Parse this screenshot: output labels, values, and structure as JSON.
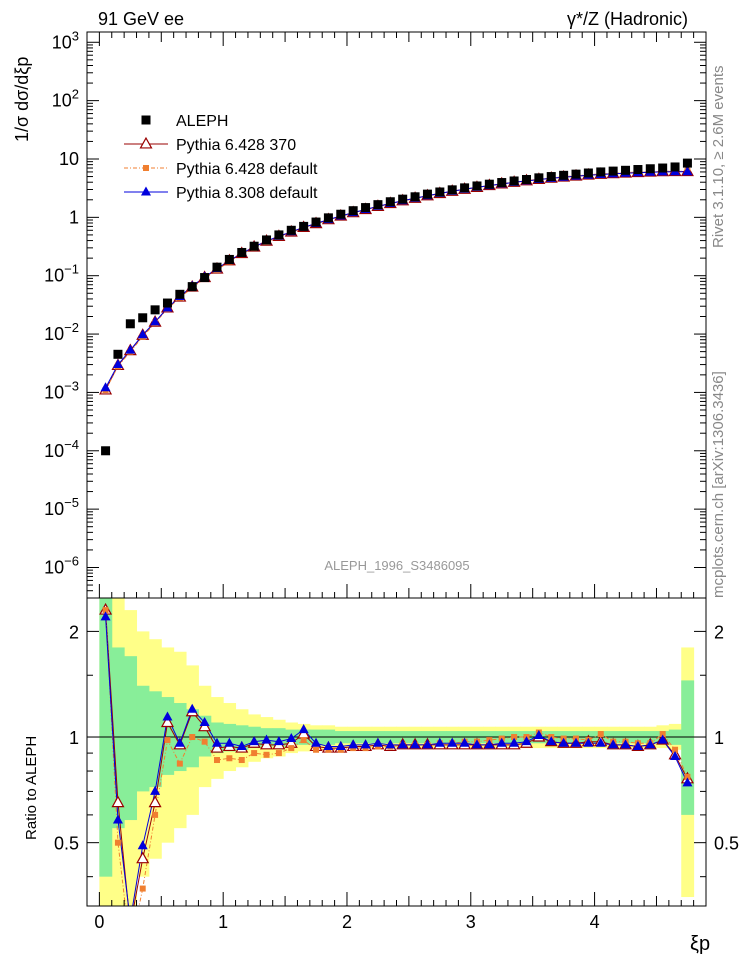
{
  "header": {
    "energy": "91 GeV ee",
    "process": "γ*/Z (Hadronic)"
  },
  "side_text": {
    "rivet": "Rivet 3.1.10, ≥ 2.6M events",
    "site": "mcplots.cern.ch [arXiv:1306.3436]"
  },
  "analysis_id": "ALEPH_1996_S3486095",
  "colors": {
    "aleph": "#000000",
    "py6_370": "#990000",
    "py6_default": "#f07f30",
    "py8_default": "#0000dd",
    "band_inner": "#88ee99",
    "band_outer": "#ffff88"
  },
  "chart_data": [
    {
      "type": "scatter",
      "name": "main",
      "ylabel": "1/σ dσ/dξp",
      "yscale": "log",
      "xlim": [
        -0.1,
        4.9
      ],
      "ylim": [
        3e-07,
        1500
      ],
      "yticks": [
        {
          "v": 1e-06,
          "base": "10",
          "exp": "−6"
        },
        {
          "v": 1e-05,
          "base": "10",
          "exp": "−5"
        },
        {
          "v": 0.0001,
          "base": "10",
          "exp": "−4"
        },
        {
          "v": 0.001,
          "base": "10",
          "exp": "−3"
        },
        {
          "v": 0.01,
          "base": "10",
          "exp": "−2"
        },
        {
          "v": 0.1,
          "base": "10",
          "exp": "−1"
        },
        {
          "v": 1,
          "base": "1",
          "exp": ""
        },
        {
          "v": 10,
          "base": "10",
          "exp": ""
        },
        {
          "v": 100,
          "base": "10",
          "exp": "2"
        },
        {
          "v": 1000,
          "base": "10",
          "exp": "3"
        }
      ],
      "legend": [
        "ALEPH",
        "Pythia 6.428 370",
        "Pythia 6.428 default",
        "Pythia 8.308 default"
      ],
      "x": [
        0.05,
        0.15,
        0.25,
        0.35,
        0.45,
        0.55,
        0.65,
        0.75,
        0.85,
        0.95,
        1.05,
        1.15,
        1.25,
        1.35,
        1.45,
        1.55,
        1.65,
        1.75,
        1.85,
        1.95,
        2.05,
        2.15,
        2.25,
        2.35,
        2.45,
        2.55,
        2.65,
        2.75,
        2.85,
        2.95,
        3.05,
        3.15,
        3.25,
        3.35,
        3.45,
        3.55,
        3.65,
        3.75,
        3.85,
        3.95,
        4.05,
        4.15,
        4.25,
        4.35,
        4.45,
        4.55,
        4.65,
        4.75
      ],
      "aleph": [
        0.0001,
        0.0045,
        0.015,
        0.019,
        0.026,
        0.034,
        0.048,
        0.065,
        0.093,
        0.14,
        0.19,
        0.25,
        0.32,
        0.41,
        0.5,
        0.6,
        0.7,
        0.83,
        0.98,
        1.13,
        1.3,
        1.47,
        1.65,
        1.85,
        2.05,
        2.25,
        2.5,
        2.72,
        2.96,
        3.2,
        3.45,
        3.7,
        3.95,
        4.2,
        4.45,
        4.75,
        5.0,
        5.25,
        5.5,
        5.75,
        6.0,
        6.2,
        6.4,
        6.6,
        6.8,
        7.0,
        7.3,
        8.5
      ],
      "py6_370": [
        0.0011,
        0.0029,
        0.0052,
        0.0095,
        0.016,
        0.028,
        0.043,
        0.064,
        0.093,
        0.13,
        0.18,
        0.24,
        0.31,
        0.39,
        0.47,
        0.56,
        0.67,
        0.78,
        0.91,
        1.05,
        1.2,
        1.36,
        1.54,
        1.72,
        1.92,
        2.12,
        2.34,
        2.56,
        2.79,
        3.02,
        3.26,
        3.5,
        3.74,
        3.98,
        4.22,
        4.46,
        4.68,
        4.9,
        5.1,
        5.3,
        5.46,
        5.6,
        5.74,
        5.86,
        5.96,
        6.05,
        6.1,
        6.1
      ],
      "py6_default": [
        0.0011,
        0.0028,
        0.005,
        0.009,
        0.0155,
        0.027,
        0.042,
        0.062,
        0.09,
        0.125,
        0.175,
        0.235,
        0.3,
        0.38,
        0.46,
        0.55,
        0.66,
        0.77,
        0.9,
        1.04,
        1.19,
        1.35,
        1.53,
        1.71,
        1.91,
        2.11,
        2.33,
        2.56,
        2.79,
        3.03,
        3.27,
        3.52,
        3.77,
        4.02,
        4.27,
        4.52,
        4.75,
        4.97,
        5.18,
        5.38,
        5.55,
        5.7,
        5.84,
        5.96,
        6.06,
        6.15,
        6.2,
        6.2
      ],
      "py8_default": [
        0.0012,
        0.003,
        0.0053,
        0.0097,
        0.0162,
        0.028,
        0.044,
        0.066,
        0.095,
        0.132,
        0.182,
        0.242,
        0.312,
        0.392,
        0.475,
        0.565,
        0.675,
        0.785,
        0.915,
        1.055,
        1.205,
        1.365,
        1.545,
        1.725,
        1.925,
        2.125,
        2.345,
        2.57,
        2.8,
        3.03,
        3.27,
        3.5,
        3.74,
        3.98,
        4.21,
        4.44,
        4.66,
        4.87,
        5.07,
        5.26,
        5.42,
        5.56,
        5.7,
        5.82,
        5.92,
        6.0,
        6.05,
        6.05
      ]
    },
    {
      "type": "scatter",
      "name": "ratio",
      "ylabel": "Ratio to ALEPH",
      "xlabel": "ξp",
      "xlim": [
        -0.1,
        4.9
      ],
      "ylim": [
        0.33,
        2.49
      ],
      "yticks": [
        0.5,
        1,
        2
      ],
      "xticks": [
        0,
        1,
        2,
        3,
        4
      ],
      "band_inner": [
        0.4,
        0.55,
        0.58,
        0.7,
        0.72,
        0.78,
        0.8,
        0.82,
        0.88,
        0.9,
        0.91,
        0.92,
        0.93,
        0.94,
        0.94,
        0.95,
        0.95,
        0.95,
        0.95,
        0.96,
        0.96,
        0.96,
        0.96,
        0.96,
        0.96,
        0.96,
        0.96,
        0.96,
        0.96,
        0.96,
        0.96,
        0.96,
        0.96,
        0.96,
        0.96,
        0.96,
        0.96,
        0.96,
        0.96,
        0.96,
        0.96,
        0.96,
        0.96,
        0.96,
        0.96,
        0.96,
        0.95,
        0.6
      ],
      "band_inner_hi": [
        2.5,
        1.8,
        1.7,
        1.4,
        1.35,
        1.3,
        1.25,
        1.2,
        1.15,
        1.1,
        1.09,
        1.08,
        1.07,
        1.06,
        1.06,
        1.05,
        1.05,
        1.05,
        1.05,
        1.04,
        1.04,
        1.04,
        1.04,
        1.04,
        1.04,
        1.04,
        1.04,
        1.04,
        1.04,
        1.04,
        1.04,
        1.04,
        1.04,
        1.04,
        1.04,
        1.04,
        1.04,
        1.04,
        1.04,
        1.04,
        1.04,
        1.04,
        1.04,
        1.04,
        1.04,
        1.04,
        1.05,
        1.45
      ],
      "band_outer_lo": [
        0.3,
        0.33,
        0.33,
        0.4,
        0.45,
        0.5,
        0.55,
        0.6,
        0.72,
        0.76,
        0.8,
        0.82,
        0.85,
        0.87,
        0.88,
        0.9,
        0.91,
        0.92,
        0.92,
        0.93,
        0.93,
        0.93,
        0.93,
        0.93,
        0.93,
        0.93,
        0.93,
        0.93,
        0.93,
        0.93,
        0.93,
        0.93,
        0.93,
        0.93,
        0.93,
        0.93,
        0.93,
        0.93,
        0.93,
        0.93,
        0.93,
        0.93,
        0.93,
        0.93,
        0.93,
        0.93,
        0.92,
        0.35
      ],
      "band_outer_hi": [
        2.5,
        2.5,
        2.3,
        2.0,
        1.9,
        1.8,
        1.75,
        1.6,
        1.4,
        1.3,
        1.25,
        1.2,
        1.16,
        1.14,
        1.12,
        1.1,
        1.09,
        1.08,
        1.08,
        1.07,
        1.07,
        1.07,
        1.07,
        1.07,
        1.07,
        1.07,
        1.07,
        1.07,
        1.07,
        1.07,
        1.07,
        1.07,
        1.07,
        1.07,
        1.07,
        1.07,
        1.07,
        1.07,
        1.07,
        1.07,
        1.07,
        1.07,
        1.07,
        1.07,
        1.07,
        1.08,
        1.09,
        1.8
      ],
      "py6_370": [
        2.3,
        0.65,
        0.29,
        0.45,
        0.65,
        1.1,
        0.95,
        1.18,
        1.07,
        0.93,
        0.94,
        0.93,
        0.96,
        0.95,
        0.95,
        0.96,
        1.02,
        0.94,
        0.93,
        0.93,
        0.94,
        0.94,
        0.95,
        0.94,
        0.95,
        0.95,
        0.95,
        0.95,
        0.95,
        0.95,
        0.95,
        0.95,
        0.95,
        0.95,
        0.96,
        1.0,
        0.97,
        0.96,
        0.96,
        0.97,
        0.97,
        0.95,
        0.95,
        0.94,
        0.95,
        0.98,
        0.89,
        0.76
      ],
      "py6_default": [
        2.3,
        0.5,
        0.25,
        0.37,
        0.6,
        0.98,
        0.84,
        1.0,
        0.97,
        0.86,
        0.87,
        0.86,
        0.9,
        0.89,
        0.9,
        0.93,
        0.98,
        0.92,
        0.92,
        0.92,
        0.93,
        0.93,
        0.94,
        0.94,
        0.95,
        0.95,
        0.95,
        0.96,
        0.96,
        0.97,
        0.97,
        0.98,
        0.99,
        1.0,
        1.0,
        1.03,
        1.0,
        0.99,
        0.99,
        0.98,
        1.02,
        0.97,
        0.97,
        0.96,
        0.96,
        1.02,
        0.92,
        0.77
      ],
      "py8_default": [
        2.2,
        0.58,
        0.3,
        0.49,
        0.7,
        1.14,
        0.96,
        1.2,
        1.1,
        0.96,
        0.96,
        0.94,
        0.97,
        0.98,
        0.97,
        0.99,
        1.05,
        0.96,
        0.94,
        0.94,
        0.95,
        0.95,
        0.96,
        0.95,
        0.95,
        0.95,
        0.95,
        0.96,
        0.96,
        0.96,
        0.95,
        0.95,
        0.96,
        0.96,
        0.97,
        1.01,
        0.97,
        0.96,
        0.96,
        0.96,
        0.96,
        0.95,
        0.95,
        0.94,
        0.95,
        0.98,
        0.88,
        0.74
      ]
    }
  ]
}
